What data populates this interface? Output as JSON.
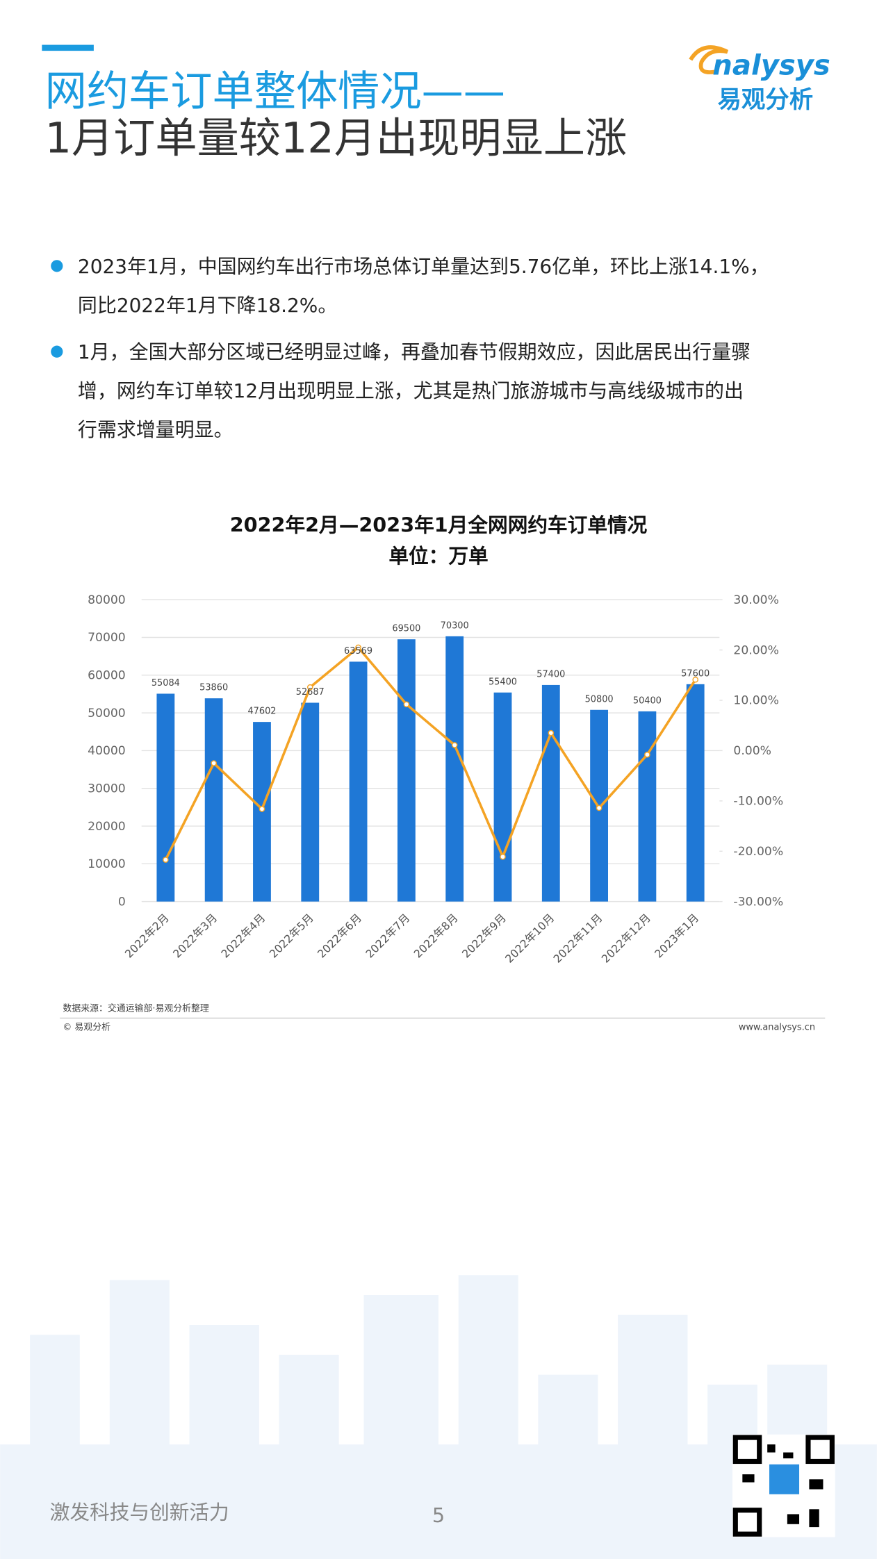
{
  "header": {
    "title_line1": "网约车订单整体情况——",
    "title_line2": "1月订单量较12月出现明显上涨",
    "logo_en": "nalysys",
    "logo_cn": "易观分析"
  },
  "bullets": [
    [
      "2023年1月，中国网约车出行市场总体订单量达到5.76亿单，环比上涨14.1%，",
      "同比2022年1月下降18.2%。"
    ],
    [
      "1月，全国大部分区域已经明显过峰，再叠加春节假期效应，因此居民出行量骤",
      "增，网约车订单较12月出现明显上涨，尤其是热门旅游城市与高线级城市的出",
      "行需求增量明显。"
    ]
  ],
  "chart_data": {
    "type": "bar",
    "title": "2022年2月—2023年1月全网网约车订单情况",
    "subtitle": "单位：万单",
    "categories": [
      "2022年2月",
      "2022年3月",
      "2022年4月",
      "2022年5月",
      "2022年6月",
      "2022年7月",
      "2022年8月",
      "2022年9月",
      "2022年10月",
      "2022年11月",
      "2022年12月",
      "2023年1月"
    ],
    "series": [
      {
        "type": "bar",
        "color": "#1f78d6",
        "values": [
          55084,
          53860,
          47602,
          52687,
          63569,
          69500,
          70300,
          55400,
          57400,
          50800,
          50400,
          57600
        ]
      },
      {
        "type": "line",
        "axis": "y2",
        "color": "#f4a324",
        "values": [
          -21.7,
          -2.5,
          -11.6,
          12.6,
          20.5,
          9.2,
          1.1,
          -21.1,
          3.5,
          -11.4,
          -0.8,
          14.1
        ]
      }
    ],
    "ylim": [
      0,
      80000
    ],
    "yticks": [
      0,
      10000,
      20000,
      30000,
      40000,
      50000,
      60000,
      70000,
      80000
    ],
    "y2lim": [
      -30,
      30
    ],
    "y2ticks": [
      {
        "value": -30,
        "label": "-30.00%"
      },
      {
        "value": -20,
        "label": "-20.00%"
      },
      {
        "value": -10,
        "label": "-10.00%"
      },
      {
        "value": 0,
        "label": "0.00%"
      },
      {
        "value": 10,
        "label": "10.00%"
      },
      {
        "value": 20,
        "label": "20.00%"
      },
      {
        "value": 30,
        "label": "30.00%"
      }
    ],
    "grid": true
  },
  "source": "数据来源：交通运输部·易观分析整理",
  "copyright": "© 易观分析",
  "website": "www.analysys.cn",
  "footer": {
    "slogan": "激发科技与创新活力",
    "page": "5"
  }
}
